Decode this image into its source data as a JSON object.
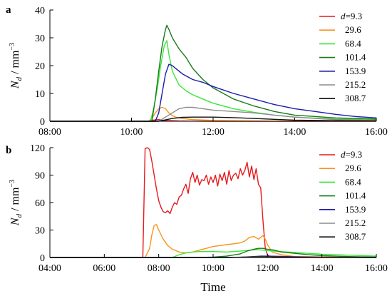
{
  "chart_data": [
    {
      "panel_label": "a",
      "type": "line",
      "ylabel": "N_d / mm^-3",
      "ylabel_parts": {
        "symbol": "N",
        "sub": "d",
        "unit": " / mm",
        "sup": "−3"
      },
      "ylim": [
        0,
        40
      ],
      "yticks": [
        0,
        10,
        20,
        30,
        40
      ],
      "xlim": [
        "08:00",
        "16:00"
      ],
      "xticks": [
        "08:00",
        "10:00",
        "12:00",
        "14:00",
        "16:00"
      ],
      "legend_position": "top-right",
      "series": [
        {
          "name": "d=9.3",
          "legend_prefix": "d",
          "legend_value": "=9.3",
          "color": "#e8191c",
          "x": [
            "08:00",
            "10:00",
            "10:25",
            "10:30",
            "10:35",
            "10:40",
            "10:45",
            "10:50",
            "11:00",
            "11:10",
            "11:30",
            "12:00",
            "16:00"
          ],
          "y": [
            0,
            0,
            0,
            0.3,
            0.5,
            0.6,
            0.4,
            0.3,
            0.2,
            0.1,
            0.05,
            0,
            0
          ]
        },
        {
          "name": "29.6",
          "legend_prefix": "",
          "legend_value": "29.6",
          "color": "#f7941d",
          "x": [
            "08:00",
            "10:00",
            "10:25",
            "10:30",
            "10:35",
            "10:40",
            "10:45",
            "10:50",
            "10:55",
            "11:00",
            "11:05",
            "11:15",
            "11:30",
            "12:00",
            "13:00",
            "16:00"
          ],
          "y": [
            0,
            0,
            0,
            1,
            3,
            4.5,
            5,
            4.5,
            3,
            2,
            1.5,
            1,
            0.6,
            0.3,
            0.1,
            0
          ]
        },
        {
          "name": "68.4",
          "legend_prefix": "",
          "legend_value": "68.4",
          "color": "#39e639",
          "x": [
            "08:00",
            "10:00",
            "10:28",
            "10:33",
            "10:38",
            "10:43",
            "10:48",
            "10:52",
            "10:55",
            "11:00",
            "11:10",
            "11:20",
            "11:30",
            "11:45",
            "12:00",
            "12:30",
            "13:00",
            "13:30",
            "14:00",
            "15:00",
            "16:00"
          ],
          "y": [
            0,
            0,
            0,
            5,
            12,
            20,
            27,
            29,
            24,
            18,
            13,
            11,
            9.5,
            8,
            6.5,
            4.5,
            3.2,
            2.2,
            1.5,
            0.8,
            0.5
          ]
        },
        {
          "name": "101.4",
          "legend_prefix": "",
          "legend_value": "101.4",
          "color": "#1a7a1a",
          "x": [
            "08:00",
            "10:00",
            "10:30",
            "10:35",
            "10:40",
            "10:45",
            "10:50",
            "10:52",
            "10:55",
            "11:00",
            "11:10",
            "11:20",
            "11:30",
            "11:45",
            "12:00",
            "12:30",
            "13:00",
            "13:30",
            "14:00",
            "15:00",
            "16:00"
          ],
          "y": [
            0,
            0,
            0,
            8,
            18,
            27,
            33,
            34.5,
            33,
            30,
            26,
            23,
            19,
            15,
            12,
            8,
            5.5,
            3.5,
            2.2,
            1.2,
            0.8
          ]
        },
        {
          "name": "153.9",
          "legend_prefix": "",
          "legend_value": "153.9",
          "color": "#1c1ca8",
          "x": [
            "08:00",
            "10:00",
            "10:35",
            "10:40",
            "10:45",
            "10:50",
            "10:55",
            "11:00",
            "11:05",
            "11:15",
            "11:30",
            "11:45",
            "12:00",
            "12:30",
            "13:00",
            "13:30",
            "14:00",
            "14:30",
            "15:00",
            "15:30",
            "16:00"
          ],
          "y": [
            0,
            0,
            0,
            3,
            10,
            17,
            20.5,
            20,
            19,
            17,
            15,
            14,
            12.5,
            10,
            8,
            6,
            4.5,
            3.5,
            2.5,
            1.7,
            1.2
          ]
        },
        {
          "name": "215.2",
          "legend_prefix": "",
          "legend_value": "215.2",
          "color": "#8c8c8c",
          "x": [
            "08:00",
            "10:00",
            "10:40",
            "10:50",
            "11:00",
            "11:10",
            "11:20",
            "11:30",
            "11:45",
            "12:00",
            "12:30",
            "13:00",
            "13:30",
            "14:00",
            "14:30",
            "15:00",
            "16:00"
          ],
          "y": [
            0,
            0,
            0,
            1.5,
            3,
            4.5,
            5,
            5,
            4.5,
            4,
            3.5,
            3,
            2.2,
            1.5,
            1,
            0.6,
            0.3
          ]
        },
        {
          "name": "308.7",
          "legend_prefix": "",
          "legend_value": "308.7",
          "color": "#111111",
          "x": [
            "08:00",
            "10:00",
            "10:40",
            "10:50",
            "11:00",
            "11:15",
            "11:30",
            "12:00",
            "12:30",
            "13:00",
            "13:30",
            "14:00",
            "15:00",
            "16:00"
          ],
          "y": [
            0,
            0,
            0,
            0.5,
            1,
            1.4,
            1.5,
            1.5,
            1.3,
            1,
            0.7,
            0.4,
            0.2,
            0.1
          ]
        }
      ]
    },
    {
      "panel_label": "b",
      "type": "line",
      "ylabel": "N_d / mm^-3",
      "ylabel_parts": {
        "symbol": "N",
        "sub": "d",
        "unit": " / mm",
        "sup": "−3"
      },
      "ylim": [
        0,
        120
      ],
      "yticks": [
        0,
        30,
        60,
        90,
        120
      ],
      "xlim": [
        "04:00",
        "16:00"
      ],
      "xticks": [
        "04:00",
        "06:00",
        "08:00",
        "10:00",
        "12:00",
        "14:00",
        "16:00"
      ],
      "xlabel": "Time",
      "legend_position": "top-right",
      "series": [
        {
          "name": "d=9.3",
          "legend_prefix": "d",
          "legend_value": "=9.3",
          "color": "#e8191c",
          "x": [
            "04:00",
            "07:25",
            "07:30",
            "07:35",
            "07:40",
            "07:45",
            "07:50",
            "07:55",
            "08:00",
            "08:05",
            "08:10",
            "08:15",
            "08:20",
            "08:25",
            "08:30",
            "08:35",
            "08:40",
            "08:45",
            "08:50",
            "08:55",
            "09:00",
            "09:05",
            "09:10",
            "09:15",
            "09:20",
            "09:25",
            "09:30",
            "09:35",
            "09:40",
            "09:45",
            "09:50",
            "09:55",
            "10:00",
            "10:05",
            "10:10",
            "10:15",
            "10:20",
            "10:25",
            "10:30",
            "10:35",
            "10:40",
            "10:45",
            "10:50",
            "10:55",
            "11:00",
            "11:05",
            "11:10",
            "11:15",
            "11:20",
            "11:25",
            "11:30",
            "11:35",
            "11:40",
            "11:45",
            "11:50",
            "11:55",
            "12:00",
            "12:05",
            "12:10",
            "12:15",
            "16:00"
          ],
          "y": [
            0,
            0,
            119,
            120,
            118,
            105,
            90,
            75,
            62,
            55,
            50,
            49,
            51,
            48,
            55,
            60,
            58,
            66,
            68,
            75,
            80,
            70,
            86,
            93,
            82,
            90,
            79,
            85,
            84,
            90,
            80,
            88,
            82,
            90,
            78,
            91,
            84,
            93,
            80,
            95,
            84,
            90,
            92,
            86,
            97,
            90,
            95,
            104,
            88,
            100,
            85,
            97,
            80,
            76,
            40,
            10,
            3,
            1,
            0,
            0,
            0
          ]
        },
        {
          "name": "29.6",
          "legend_prefix": "",
          "legend_value": "29.6",
          "color": "#f7941d",
          "x": [
            "04:00",
            "07:30",
            "07:40",
            "07:45",
            "07:50",
            "07:55",
            "08:00",
            "08:10",
            "08:20",
            "08:30",
            "08:45",
            "09:00",
            "09:15",
            "09:30",
            "09:45",
            "10:00",
            "10:15",
            "10:30",
            "10:45",
            "11:00",
            "11:10",
            "11:20",
            "11:30",
            "11:40",
            "11:45",
            "11:50",
            "11:55",
            "12:00",
            "12:10",
            "12:30",
            "13:00",
            "16:00"
          ],
          "y": [
            0,
            0,
            10,
            25,
            35,
            36,
            30,
            20,
            13,
            9,
            6,
            5,
            6,
            8,
            10,
            12,
            13,
            14,
            15,
            16,
            18,
            22,
            23,
            20,
            22,
            24,
            20,
            14,
            6,
            3,
            1,
            0
          ]
        },
        {
          "name": "68.4",
          "legend_prefix": "",
          "legend_value": "68.4",
          "color": "#39e639",
          "x": [
            "04:00",
            "08:30",
            "08:45",
            "09:00",
            "09:15",
            "09:30",
            "09:45",
            "10:00",
            "10:30",
            "11:00",
            "11:20",
            "11:40",
            "11:50",
            "12:00",
            "12:15",
            "12:30",
            "13:00",
            "13:30",
            "14:00",
            "14:30",
            "15:00",
            "15:30",
            "16:00"
          ],
          "y": [
            0,
            0,
            3,
            5,
            6,
            6.5,
            6.5,
            6.5,
            6,
            7,
            8,
            8.5,
            8,
            7.5,
            7,
            6.5,
            5.5,
            4.5,
            3.5,
            3,
            2.5,
            2,
            1.5
          ]
        },
        {
          "name": "101.4",
          "legend_prefix": "",
          "legend_value": "101.4",
          "color": "#1a7a1a",
          "x": [
            "04:00",
            "09:30",
            "10:00",
            "10:30",
            "11:00",
            "11:15",
            "11:30",
            "11:40",
            "11:50",
            "12:00",
            "12:15",
            "12:30",
            "13:00",
            "13:30",
            "14:00",
            "15:00",
            "16:00"
          ],
          "y": [
            0,
            0,
            0.5,
            1.5,
            4,
            7,
            9,
            10,
            10,
            9,
            8,
            6,
            4.5,
            3,
            2,
            1,
            0.5
          ]
        },
        {
          "name": "153.9",
          "legend_prefix": "",
          "legend_value": "153.9",
          "color": "#1c1ca8",
          "x": [
            "04:00",
            "10:30",
            "11:00",
            "11:30",
            "11:45",
            "12:00",
            "12:30",
            "13:00",
            "14:00",
            "16:00"
          ],
          "y": [
            0,
            0,
            0.3,
            1,
            1.5,
            1.5,
            1.2,
            0.8,
            0.3,
            0
          ]
        },
        {
          "name": "215.2",
          "legend_prefix": "",
          "legend_value": "215.2",
          "color": "#8c8c8c",
          "x": [
            "04:00",
            "10:30",
            "11:00",
            "11:30",
            "12:00",
            "12:30",
            "13:00",
            "14:00",
            "16:00"
          ],
          "y": [
            0,
            0,
            0.3,
            0.8,
            1,
            0.8,
            0.5,
            0.2,
            0
          ]
        },
        {
          "name": "308.7",
          "legend_prefix": "",
          "legend_value": "308.7",
          "color": "#111111",
          "x": [
            "04:00",
            "10:30",
            "11:00",
            "11:30",
            "12:00",
            "12:30",
            "13:00",
            "14:00",
            "16:00"
          ],
          "y": [
            0,
            0,
            0.2,
            0.6,
            0.8,
            0.6,
            0.3,
            0.1,
            0
          ]
        }
      ]
    }
  ]
}
